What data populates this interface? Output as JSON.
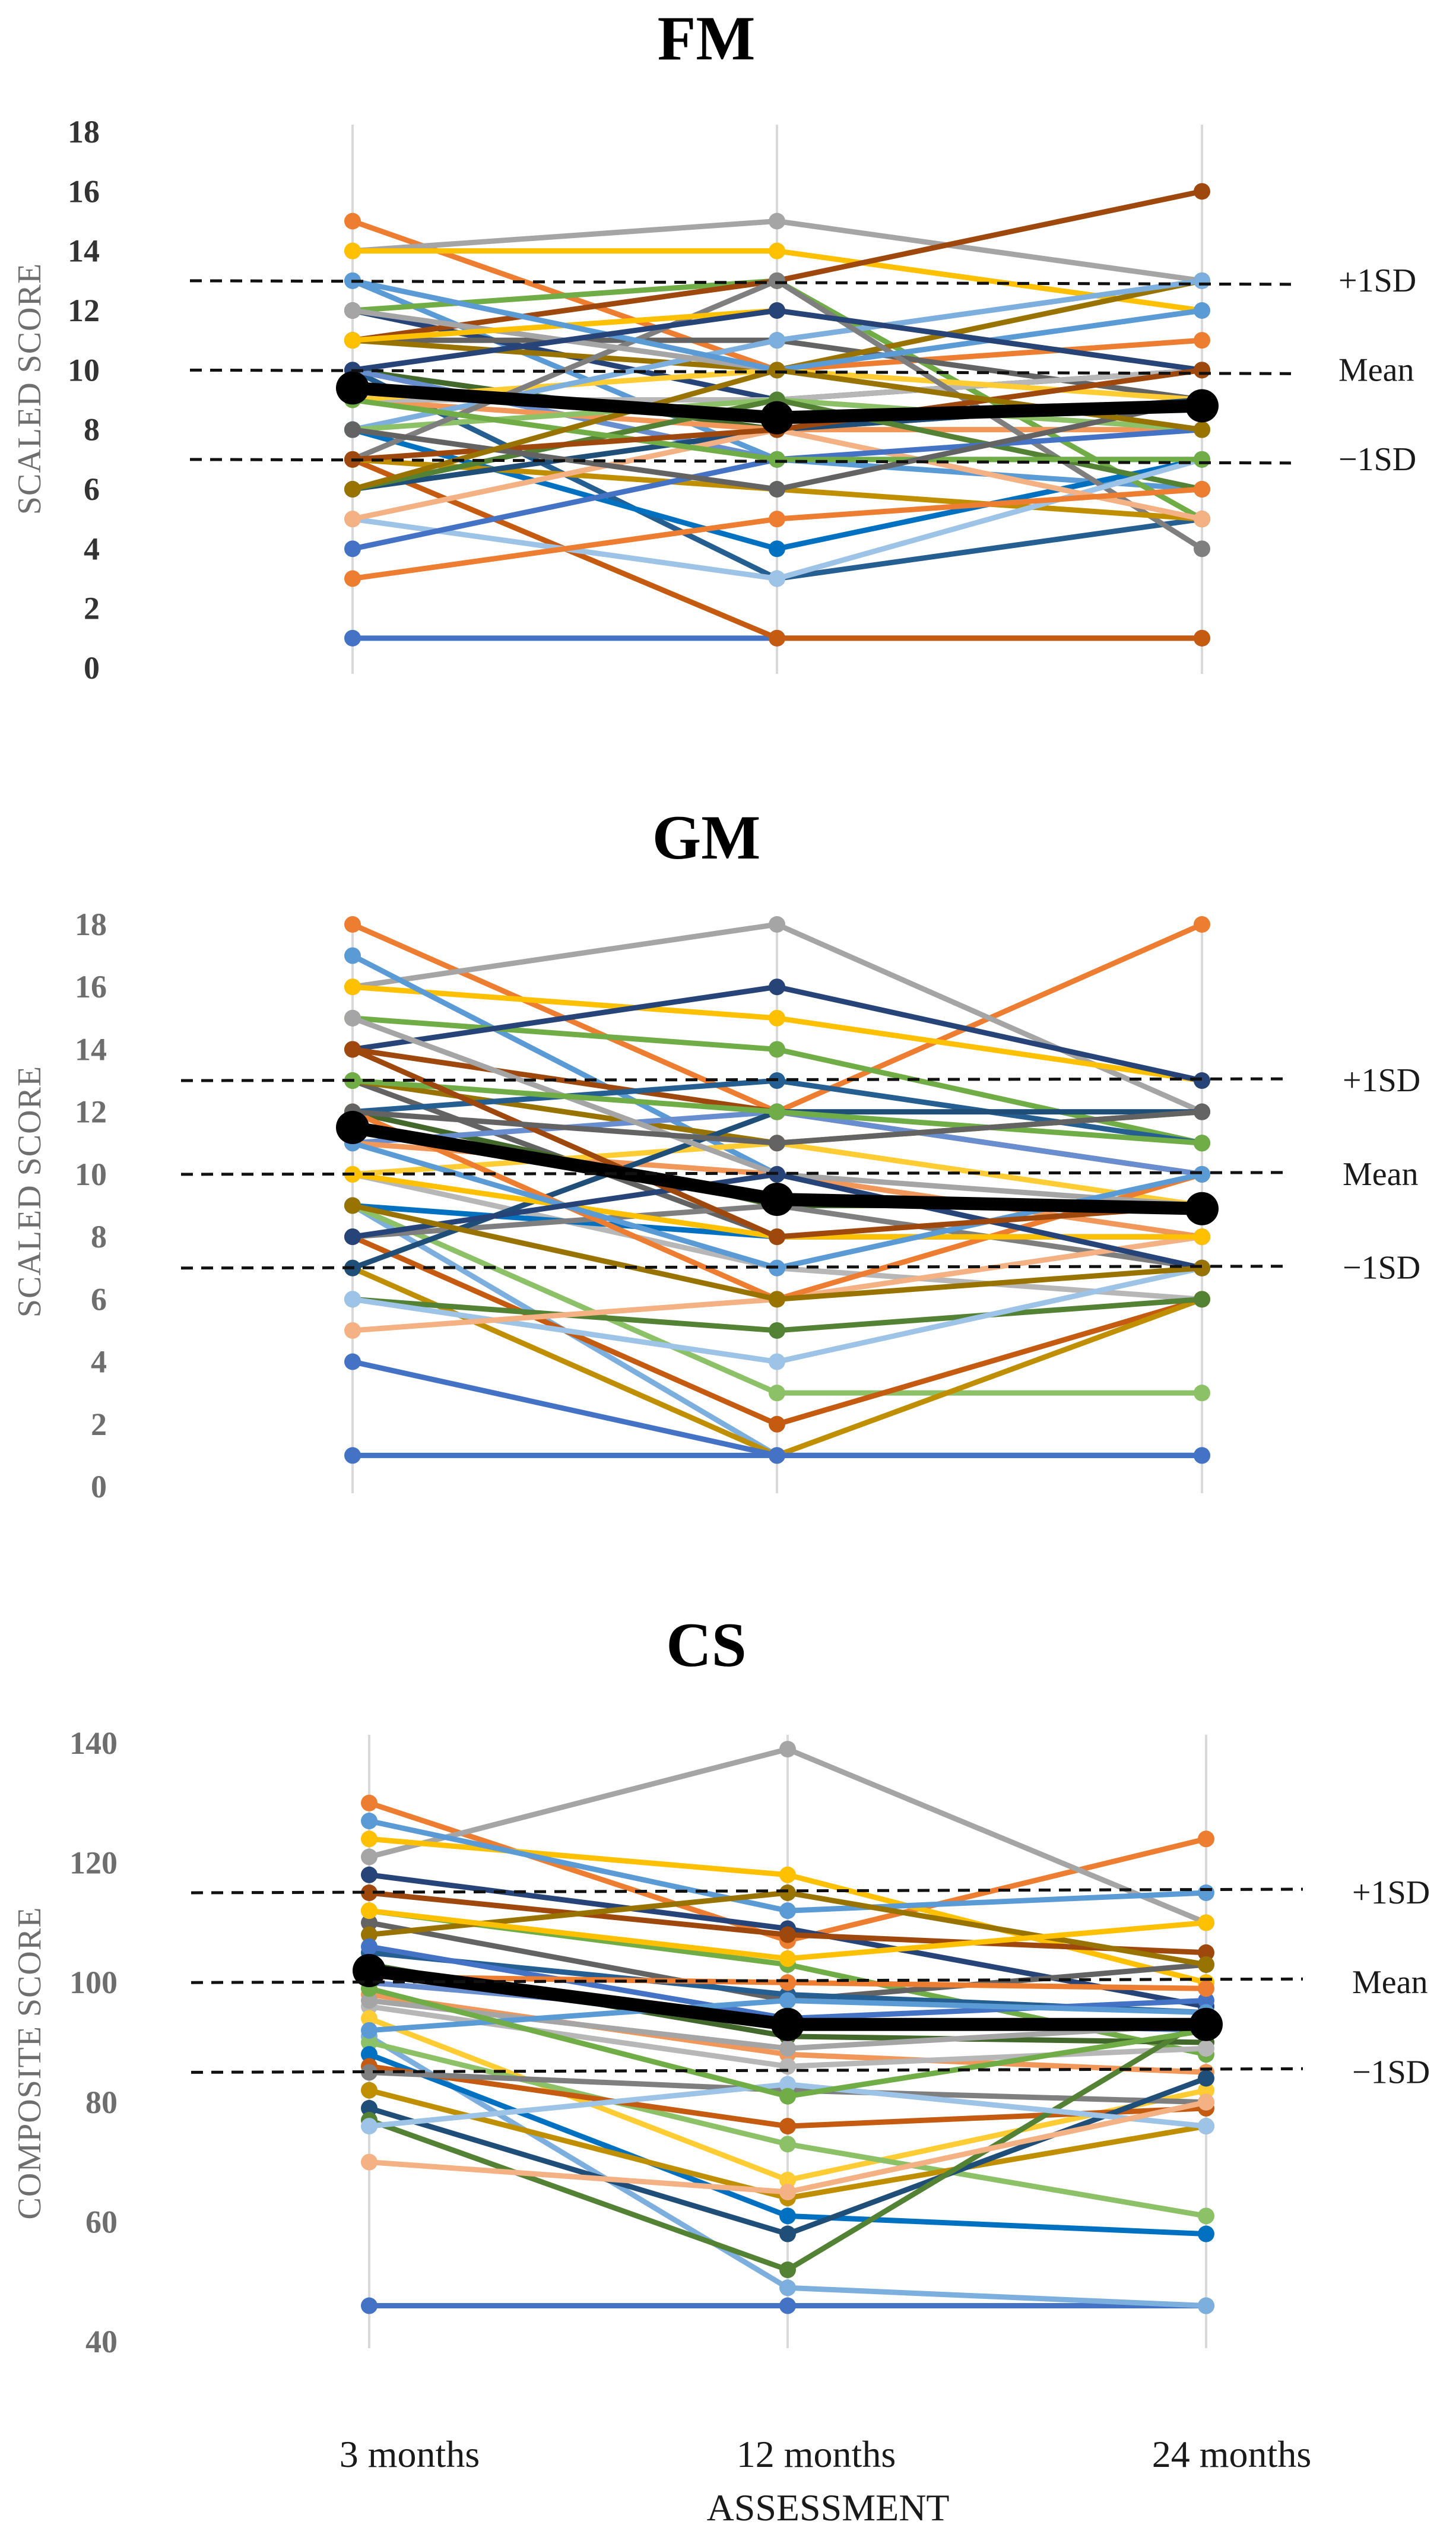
{
  "x_axis": {
    "categories": [
      "3 months",
      "12 months",
      "24 months"
    ],
    "label": "ASSESSMENT"
  },
  "reference_labels": {
    "plus": "+1SD",
    "mean": "Mean",
    "minus": "−1SD"
  },
  "colors": {
    "mean_line": "#000000",
    "reference_line": "#111111",
    "individual_palette": [
      "#4472c4",
      "#ed7d31",
      "#a5a5a5",
      "#ffc000",
      "#5b9bd5",
      "#70ad47",
      "#264478",
      "#9e480e",
      "#636363",
      "#997300",
      "#255e91",
      "#43682b",
      "#698ed0",
      "#f1975a",
      "#b7b7b7",
      "#ffcd33",
      "#7cafdd",
      "#8cc168",
      "#0070c0",
      "#c55a11",
      "#7f7f7f",
      "#bf8f00",
      "#1f4e79",
      "#548235",
      "#9dc3e6",
      "#f4b183"
    ]
  },
  "chart_data": [
    {
      "type": "line",
      "title": "FM",
      "ylabel": "SCALED  SCORE",
      "categories": [
        "3 months",
        "12 months",
        "24 months"
      ],
      "ylim": [
        0,
        18
      ],
      "yticks": [
        0,
        2,
        4,
        6,
        8,
        10,
        12,
        14,
        16,
        18
      ],
      "reference_lines": {
        "plus_1sd": 13,
        "mean": 10,
        "minus_1sd": 7
      },
      "mean_series": {
        "name": "Mean",
        "values": [
          9.4,
          8.4,
          8.8
        ]
      },
      "series": [
        {
          "values": [
            1,
            1,
            1
          ]
        },
        {
          "values": [
            15,
            10,
            11
          ]
        },
        {
          "values": [
            14,
            15,
            13
          ]
        },
        {
          "values": [
            14,
            14,
            12
          ]
        },
        {
          "values": [
            13,
            7,
            6
          ]
        },
        {
          "values": [
            12,
            13,
            5
          ]
        },
        {
          "values": [
            12,
            9,
            10
          ]
        },
        {
          "values": [
            11,
            13,
            16
          ]
        },
        {
          "values": [
            11,
            11,
            9
          ]
        },
        {
          "values": [
            11,
            10,
            13
          ]
        },
        {
          "values": [
            10,
            3,
            5
          ]
        },
        {
          "values": [
            10,
            8,
            9
          ]
        },
        {
          "values": [
            10,
            7,
            7
          ]
        },
        {
          "values": [
            9,
            8,
            8
          ]
        },
        {
          "values": [
            9,
            9,
            10
          ]
        },
        {
          "values": [
            9,
            10,
            9
          ]
        },
        {
          "values": [
            8,
            11,
            13
          ]
        },
        {
          "values": [
            8,
            9,
            8
          ]
        },
        {
          "values": [
            8,
            4,
            7
          ]
        },
        {
          "values": [
            7,
            1,
            1
          ]
        },
        {
          "values": [
            7,
            13,
            4
          ]
        },
        {
          "values": [
            7,
            6,
            5
          ]
        },
        {
          "values": [
            6,
            8,
            9
          ]
        },
        {
          "values": [
            6,
            9,
            6
          ]
        },
        {
          "values": [
            5,
            3,
            7
          ]
        },
        {
          "values": [
            5,
            8,
            5
          ]
        },
        {
          "values": [
            4,
            7,
            8
          ]
        },
        {
          "values": [
            3,
            5,
            6
          ]
        },
        {
          "values": [
            12,
            10,
            8
          ]
        },
        {
          "values": [
            11,
            12,
            10
          ]
        },
        {
          "values": [
            13,
            10,
            12
          ]
        },
        {
          "values": [
            9,
            7,
            7
          ]
        },
        {
          "values": [
            10,
            12,
            10
          ]
        },
        {
          "values": [
            7,
            8,
            10
          ]
        },
        {
          "values": [
            8,
            6,
            9
          ]
        },
        {
          "values": [
            6,
            10,
            8
          ]
        }
      ]
    },
    {
      "type": "line",
      "title": "GM",
      "ylabel": "SCALED SCORE",
      "categories": [
        "3 months",
        "12 months",
        "24 months"
      ],
      "ylim": [
        0,
        18
      ],
      "yticks": [
        0,
        2,
        4,
        6,
        8,
        10,
        12,
        14,
        16,
        18
      ],
      "reference_lines": {
        "plus_1sd": 13,
        "mean": 10,
        "minus_1sd": 7
      },
      "mean_series": {
        "name": "Mean",
        "values": [
          11.5,
          9.2,
          8.9
        ]
      },
      "series": [
        {
          "values": [
            1,
            1,
            1
          ]
        },
        {
          "values": [
            18,
            12,
            18
          ]
        },
        {
          "values": [
            16,
            18,
            12
          ]
        },
        {
          "values": [
            16,
            15,
            13
          ]
        },
        {
          "values": [
            17,
            10,
            7
          ]
        },
        {
          "values": [
            15,
            14,
            11
          ]
        },
        {
          "values": [
            14,
            16,
            13
          ]
        },
        {
          "values": [
            14,
            12,
            10
          ]
        },
        {
          "values": [
            13,
            8,
            8
          ]
        },
        {
          "values": [
            13,
            11,
            12
          ]
        },
        {
          "values": [
            12,
            13,
            11
          ]
        },
        {
          "values": [
            12,
            9,
            9
          ]
        },
        {
          "values": [
            11,
            12,
            10
          ]
        },
        {
          "values": [
            11,
            10,
            8
          ]
        },
        {
          "values": [
            10,
            7,
            6
          ]
        },
        {
          "values": [
            10,
            11,
            9
          ]
        },
        {
          "values": [
            9,
            1,
            1
          ]
        },
        {
          "values": [
            9,
            3,
            3
          ]
        },
        {
          "values": [
            9,
            8,
            8
          ]
        },
        {
          "values": [
            8,
            2,
            6
          ]
        },
        {
          "values": [
            8,
            9,
            7
          ]
        },
        {
          "values": [
            7,
            1,
            6
          ]
        },
        {
          "values": [
            7,
            12,
            12
          ]
        },
        {
          "values": [
            6,
            5,
            6
          ]
        },
        {
          "values": [
            6,
            4,
            7
          ]
        },
        {
          "values": [
            5,
            6,
            8
          ]
        },
        {
          "values": [
            4,
            1,
            1
          ]
        },
        {
          "values": [
            12,
            6,
            10
          ]
        },
        {
          "values": [
            15,
            10,
            9
          ]
        },
        {
          "values": [
            10,
            8,
            8
          ]
        },
        {
          "values": [
            11,
            7,
            10
          ]
        },
        {
          "values": [
            13,
            12,
            11
          ]
        },
        {
          "values": [
            8,
            10,
            7
          ]
        },
        {
          "values": [
            14,
            8,
            9
          ]
        },
        {
          "values": [
            12,
            11,
            12
          ]
        },
        {
          "values": [
            9,
            6,
            7
          ]
        }
      ]
    },
    {
      "type": "line",
      "title": "CS",
      "ylabel": "COMPOSITE SCORE",
      "categories": [
        "3 months",
        "12 months",
        "24 months"
      ],
      "ylim": [
        40,
        140
      ],
      "yticks": [
        40,
        60,
        80,
        100,
        120,
        140
      ],
      "reference_lines": {
        "plus_1sd": 115,
        "mean": 100,
        "minus_1sd": 85
      },
      "mean_series": {
        "name": "Mean",
        "values": [
          102,
          93,
          93
        ]
      },
      "series": [
        {
          "values": [
            46,
            46,
            46
          ]
        },
        {
          "values": [
            130,
            107,
            124
          ]
        },
        {
          "values": [
            121,
            139,
            110
          ]
        },
        {
          "values": [
            124,
            118,
            100
          ]
        },
        {
          "values": [
            127,
            112,
            115
          ]
        },
        {
          "values": [
            112,
            103,
            88
          ]
        },
        {
          "values": [
            118,
            109,
            96
          ]
        },
        {
          "values": [
            115,
            108,
            105
          ]
        },
        {
          "values": [
            110,
            97,
            103
          ]
        },
        {
          "values": [
            108,
            115,
            103
          ]
        },
        {
          "values": [
            105,
            98,
            95
          ]
        },
        {
          "values": [
            103,
            91,
            90
          ]
        },
        {
          "values": [
            100,
            94,
            92
          ]
        },
        {
          "values": [
            98,
            88,
            85
          ]
        },
        {
          "values": [
            96,
            86,
            89
          ]
        },
        {
          "values": [
            94,
            67,
            82
          ]
        },
        {
          "values": [
            91,
            49,
            46
          ]
        },
        {
          "values": [
            90,
            73,
            61
          ]
        },
        {
          "values": [
            88,
            61,
            58
          ]
        },
        {
          "values": [
            86,
            76,
            79
          ]
        },
        {
          "values": [
            85,
            82,
            80
          ]
        },
        {
          "values": [
            82,
            64,
            76
          ]
        },
        {
          "values": [
            79,
            58,
            84
          ]
        },
        {
          "values": [
            77,
            52,
            94
          ]
        },
        {
          "values": [
            76,
            83,
            76
          ]
        },
        {
          "values": [
            70,
            65,
            80
          ]
        },
        {
          "values": [
            106,
            94,
            97
          ]
        },
        {
          "values": [
            101,
            100,
            99
          ]
        },
        {
          "values": [
            97,
            89,
            93
          ]
        },
        {
          "values": [
            112,
            104,
            110
          ]
        },
        {
          "values": [
            92,
            97,
            95
          ]
        },
        {
          "values": [
            99,
            81,
            92
          ]
        }
      ]
    }
  ]
}
